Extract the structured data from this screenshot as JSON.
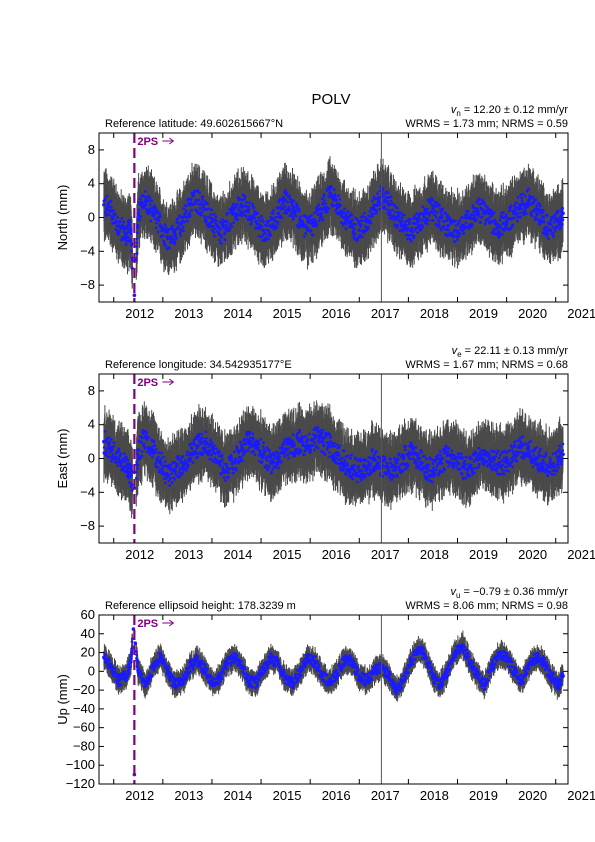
{
  "title": "POLV",
  "chart_data": [
    {
      "type": "scatter",
      "key": "north",
      "ylabel": "North (mm)",
      "ylim": [
        -10,
        10
      ],
      "yticks": [
        -8,
        -4,
        0,
        4,
        8
      ],
      "xlim": [
        2011.7,
        2021.25
      ],
      "xticks": [
        2012,
        2013,
        2014,
        2015,
        2016,
        2017,
        2018,
        2019,
        2020,
        2021
      ],
      "reference_text": "Reference latitude: 49.602615667°N",
      "velocity_sub": "n",
      "velocity_text": "= 12.20 ± 0.12 mm/yr",
      "stats_text": "WRMS = 1.73 mm; NRMS = 0.59",
      "event_label": "2PS",
      "event_x": 2012.42,
      "vline_x": 2017.45,
      "series": [
        {
          "x": [
            2011.8,
            2011.95,
            2012.1,
            2012.25,
            2012.35,
            2012.42,
            2012.5,
            2012.65,
            2012.8,
            2012.95,
            2013.1,
            2013.25,
            2013.4,
            2013.55,
            2013.7,
            2013.85,
            2014.0,
            2014.15,
            2014.3,
            2014.45,
            2014.6,
            2014.75,
            2014.9,
            2015.05,
            2015.2,
            2015.35,
            2015.5,
            2015.65,
            2015.8,
            2015.95,
            2016.1,
            2016.25,
            2016.4,
            2016.55,
            2016.7,
            2016.85,
            2017.0,
            2017.15,
            2017.3,
            2017.45,
            2017.6,
            2017.75,
            2017.9,
            2018.05,
            2018.2,
            2018.35,
            2018.5,
            2018.65,
            2018.8,
            2018.95,
            2019.1,
            2019.25,
            2019.4,
            2019.55,
            2019.7,
            2019.85,
            2020.0,
            2020.15,
            2020.3,
            2020.45,
            2020.6,
            2020.75,
            2020.9,
            2021.05,
            2021.15
          ],
          "y": [
            1.5,
            0.8,
            -1.0,
            -2.0,
            -1.5,
            -9.2,
            0.5,
            2.0,
            0.5,
            -1.0,
            -2.5,
            -2.0,
            -0.5,
            1.5,
            2.0,
            1.0,
            -0.5,
            -2.0,
            -1.0,
            0.5,
            1.5,
            1.0,
            -0.5,
            -1.5,
            -1.0,
            0.5,
            2.0,
            1.0,
            -0.5,
            -1.5,
            -0.5,
            1.0,
            2.5,
            1.5,
            0.0,
            -1.0,
            -1.5,
            -0.5,
            1.0,
            2.5,
            1.5,
            0.0,
            -1.0,
            -1.5,
            -0.5,
            0.5,
            1.0,
            0.0,
            -1.0,
            -1.5,
            -1.0,
            0.0,
            1.0,
            0.5,
            -0.5,
            -1.0,
            -0.5,
            0.5,
            1.5,
            2.0,
            1.0,
            -0.5,
            -1.5,
            -0.5,
            0.5
          ]
        }
      ]
    },
    {
      "type": "scatter",
      "key": "east",
      "ylabel": "East (mm)",
      "ylim": [
        -10,
        10
      ],
      "yticks": [
        -8,
        -4,
        0,
        4,
        8
      ],
      "xlim": [
        2011.7,
        2021.25
      ],
      "xticks": [
        2012,
        2013,
        2014,
        2015,
        2016,
        2017,
        2018,
        2019,
        2020,
        2021
      ],
      "reference_text": "Reference longitude: 34.542935177°E",
      "velocity_sub": "e",
      "velocity_text": "= 22.11 ± 0.13 mm/yr",
      "stats_text": "WRMS = 1.67 mm; NRMS = 0.68",
      "event_label": "2PS",
      "event_x": 2012.42,
      "vline_x": 2017.45,
      "series": [
        {
          "x": [
            2011.8,
            2011.95,
            2012.1,
            2012.25,
            2012.35,
            2012.42,
            2012.5,
            2012.65,
            2012.8,
            2012.95,
            2013.1,
            2013.25,
            2013.4,
            2013.55,
            2013.7,
            2013.85,
            2014.0,
            2014.15,
            2014.3,
            2014.45,
            2014.6,
            2014.75,
            2014.9,
            2015.05,
            2015.2,
            2015.35,
            2015.5,
            2015.65,
            2015.8,
            2015.95,
            2016.1,
            2016.25,
            2016.4,
            2016.55,
            2016.7,
            2016.85,
            2017.0,
            2017.15,
            2017.3,
            2017.45,
            2017.6,
            2017.75,
            2017.9,
            2018.05,
            2018.2,
            2018.35,
            2018.5,
            2018.65,
            2018.8,
            2018.95,
            2019.1,
            2019.25,
            2019.4,
            2019.55,
            2019.7,
            2019.85,
            2020.0,
            2020.15,
            2020.3,
            2020.45,
            2020.6,
            2020.75,
            2020.9,
            2021.05,
            2021.15
          ],
          "y": [
            2.0,
            1.0,
            0.0,
            -1.0,
            -2.0,
            -3.5,
            1.0,
            2.5,
            1.0,
            -0.5,
            -2.0,
            -1.5,
            -0.5,
            0.5,
            1.5,
            2.0,
            1.0,
            -0.5,
            -1.5,
            -0.5,
            1.0,
            2.0,
            1.5,
            0.5,
            -0.5,
            0.0,
            1.0,
            1.5,
            2.0,
            1.5,
            2.5,
            2.0,
            1.5,
            0.5,
            -0.5,
            -1.0,
            -1.5,
            -1.0,
            0.0,
            -1.0,
            -1.5,
            -1.0,
            0.0,
            0.5,
            0.0,
            -1.0,
            -1.5,
            -0.5,
            0.5,
            0.0,
            -1.0,
            -1.0,
            0.0,
            0.5,
            0.0,
            -0.5,
            -0.5,
            0.5,
            1.5,
            1.0,
            0.0,
            -0.5,
            -1.0,
            0.0,
            0.5
          ]
        }
      ]
    },
    {
      "type": "scatter",
      "key": "up",
      "ylabel": "Up (mm)",
      "ylim": [
        -120,
        60
      ],
      "yticks": [
        60,
        40,
        20,
        0,
        -20,
        -40,
        -60,
        -80,
        -100,
        -120
      ],
      "xlim": [
        2011.7,
        2021.25
      ],
      "xticks": [
        2012,
        2013,
        2014,
        2015,
        2016,
        2017,
        2018,
        2019,
        2020,
        2021
      ],
      "reference_text": "Reference ellipsoid height: 178.3239 m",
      "velocity_sub": "u",
      "velocity_text": "= −0.79 ± 0.36 mm/yr",
      "stats_text": "WRMS = 8.06 mm; NRMS = 0.98",
      "event_label": "2PS",
      "event_x": 2012.42,
      "vline_x": 2017.45,
      "series": [
        {
          "x": [
            2011.8,
            2011.95,
            2012.1,
            2012.25,
            2012.35,
            2012.4,
            2012.42,
            2012.44,
            2012.5,
            2012.65,
            2012.8,
            2012.95,
            2013.1,
            2013.25,
            2013.4,
            2013.55,
            2013.7,
            2013.85,
            2014.0,
            2014.15,
            2014.3,
            2014.45,
            2014.6,
            2014.75,
            2014.9,
            2015.05,
            2015.2,
            2015.35,
            2015.5,
            2015.65,
            2015.8,
            2015.95,
            2016.1,
            2016.25,
            2016.4,
            2016.55,
            2016.7,
            2016.85,
            2017.0,
            2017.15,
            2017.3,
            2017.45,
            2017.6,
            2017.75,
            2017.9,
            2018.05,
            2018.2,
            2018.35,
            2018.5,
            2018.65,
            2018.8,
            2018.95,
            2019.1,
            2019.25,
            2019.4,
            2019.55,
            2019.7,
            2019.85,
            2020.0,
            2020.15,
            2020.3,
            2020.45,
            2020.6,
            2020.75,
            2020.9,
            2021.05,
            2021.15
          ],
          "y": [
            15,
            5,
            -10,
            -5,
            10,
            45,
            -110,
            30,
            0,
            -15,
            5,
            15,
            0,
            -15,
            -10,
            5,
            12,
            2,
            -12,
            -8,
            8,
            15,
            5,
            -10,
            -12,
            2,
            14,
            8,
            -8,
            -12,
            0,
            14,
            10,
            -5,
            -12,
            -2,
            12,
            10,
            -5,
            -10,
            0,
            5,
            -5,
            -20,
            -10,
            10,
            25,
            15,
            -5,
            -15,
            0,
            20,
            28,
            10,
            -5,
            -15,
            5,
            18,
            15,
            0,
            -10,
            5,
            15,
            10,
            -5,
            -15,
            -5
          ]
        }
      ]
    }
  ]
}
